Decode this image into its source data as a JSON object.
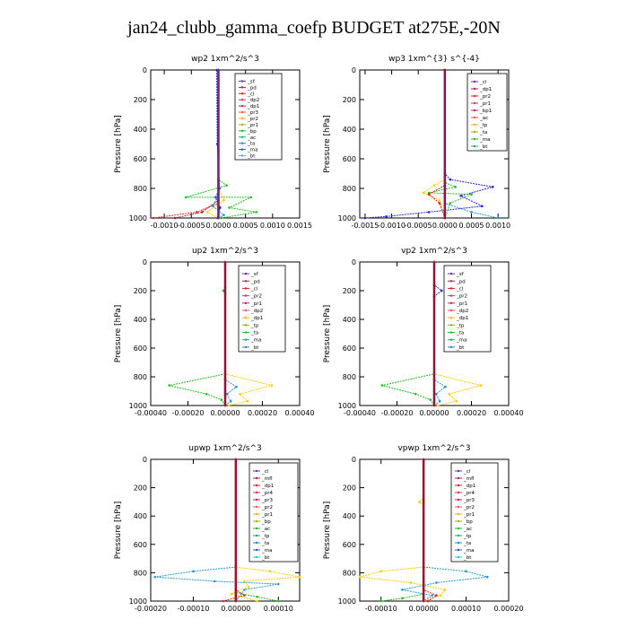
{
  "page_title": "jan24_clubb_gamma_coefp  BUDGET at275E,-20N",
  "chart_data": [
    {
      "type": "line",
      "title": "wp2   1xm^2/s^3",
      "ylabel": "Pressure [hPa]",
      "ylim": [
        1000,
        0
      ],
      "yticks": [
        0,
        200,
        400,
        600,
        800,
        1000
      ],
      "xlim": [
        -0.00125,
        0.0015
      ],
      "xticks": [
        -0.001,
        -0.0005,
        0.0,
        0.0005,
        0.001,
        0.0015
      ],
      "xtick_labels": [
        "-0.0010",
        "-0.0005",
        "0.0000",
        "0.0005",
        "0.0010",
        "0.0015"
      ],
      "legend": [
        "_sf",
        "_pd",
        "_cl",
        "_dp2",
        "_dp1",
        "_pr3",
        "_pr2",
        "_pr1",
        "_bp",
        "_ac",
        "_ta",
        "_ma",
        "_bt"
      ],
      "series": [
        {
          "color": "#2222cc",
          "points": [
            [
              -3e-05,
              0
            ],
            [
              -2e-05,
              500
            ],
            [
              2e-05,
              800
            ],
            [
              -5e-05,
              860
            ],
            [
              3e-05,
              930
            ],
            [
              -2e-05,
              1000
            ]
          ]
        },
        {
          "color": "#22bb22",
          "points": [
            [
              0,
              0
            ],
            [
              0,
              740
            ],
            [
              0.00015,
              780
            ],
            [
              -0.0006,
              860
            ],
            [
              0.0006,
              860
            ],
            [
              0.0002,
              930
            ],
            [
              0.0007,
              960
            ],
            [
              5e-05,
              1000
            ]
          ]
        },
        {
          "color": "#dd2222",
          "points": [
            [
              0,
              0
            ],
            [
              0,
              900
            ],
            [
              -0.0004,
              960
            ],
            [
              -0.0012,
              1000
            ]
          ]
        },
        {
          "color": "#882244",
          "points": [
            [
              0,
              0
            ],
            [
              0,
              880
            ],
            [
              -0.0003,
              960
            ],
            [
              -0.0008,
              1000
            ]
          ]
        },
        {
          "color": "#ffcc00",
          "points": [
            [
              0,
              0
            ],
            [
              0,
              800
            ],
            [
              0.0001,
              880
            ],
            [
              -0.0002,
              960
            ],
            [
              0,
              1000
            ]
          ]
        },
        {
          "color": "#2299cc",
          "points": [
            [
              0,
              0
            ],
            [
              0,
              840
            ],
            [
              -0.0001,
              920
            ],
            [
              0.0001,
              980
            ],
            [
              0,
              1000
            ]
          ]
        },
        {
          "color": "#6633aa",
          "points": [
            [
              0,
              0
            ],
            [
              0,
              1000
            ]
          ]
        }
      ]
    },
    {
      "type": "line",
      "title": "wp3   1xm^{3} s^{-4}",
      "ylabel": "Pressure [hPa]",
      "ylim": [
        1000,
        0
      ],
      "yticks": [
        0,
        200,
        400,
        600,
        800,
        1000
      ],
      "xlim": [
        -0.0016,
        0.0012
      ],
      "xticks": [
        -0.0015,
        -0.001,
        -0.0005,
        0.0,
        0.0005,
        0.001
      ],
      "xtick_labels": [
        "-0.0015",
        "-0.0010",
        "-0.0005",
        "0.0000",
        "0.0005",
        "0.0010"
      ],
      "legend": [
        "_cl",
        "_dp1",
        "_pr2",
        "_pr1",
        "_bp1",
        "_ac",
        "_tp",
        "_ta",
        "_ma",
        "_bt"
      ],
      "series": [
        {
          "color": "#2222cc",
          "points": [
            [
              0,
              0
            ],
            [
              0,
              700
            ],
            [
              0.0001,
              740
            ],
            [
              0.0009,
              790
            ],
            [
              0.0003,
              850
            ],
            [
              0.0007,
              920
            ],
            [
              -0.0003,
              960
            ],
            [
              -0.0011,
              990
            ],
            [
              -0.0015,
              1000
            ]
          ]
        },
        {
          "color": "#22bb22",
          "points": [
            [
              0,
              0
            ],
            [
              0,
              760
            ],
            [
              0.0002,
              790
            ],
            [
              -0.0003,
              830
            ],
            [
              0.0005,
              840
            ],
            [
              0.0001,
              900
            ],
            [
              0,
              1000
            ]
          ]
        },
        {
          "color": "#ffcc00",
          "points": [
            [
              0,
              0
            ],
            [
              0,
              740
            ],
            [
              -0.0002,
              780
            ],
            [
              -0.0004,
              830
            ],
            [
              -0.0001,
              880
            ],
            [
              0,
              1000
            ]
          ]
        },
        {
          "color": "#dd2222",
          "points": [
            [
              0,
              0
            ],
            [
              0,
              780
            ],
            [
              -0.0003,
              840
            ],
            [
              -0.0001,
              900
            ],
            [
              0,
              1000
            ]
          ]
        },
        {
          "color": "#2299cc",
          "points": [
            [
              0,
              0
            ],
            [
              0,
              900
            ],
            [
              0.0005,
              960
            ],
            [
              0.001,
              1000
            ]
          ]
        },
        {
          "color": "#aa0000",
          "points": [
            [
              0,
              0
            ],
            [
              0,
              1000
            ]
          ]
        }
      ]
    },
    {
      "type": "line",
      "title": "up2   1xm^2/s^3",
      "ylabel": "Pressure [hPa]",
      "ylim": [
        1000,
        0
      ],
      "yticks": [
        0,
        200,
        400,
        600,
        800,
        1000
      ],
      "xlim": [
        -0.0004,
        0.0004
      ],
      "xticks": [
        -0.0004,
        -0.0002,
        0.0,
        0.0002,
        0.0004
      ],
      "xtick_labels": [
        "-0.00040",
        "-0.00020",
        "0.00000",
        "0.00020",
        "0.00040"
      ],
      "legend": [
        "_sf",
        "_pd",
        "_cl",
        "_pr2",
        "_pr1",
        "_dp2",
        "_dp1",
        "_tp",
        "_ta",
        "_ma",
        "_bt"
      ],
      "series": [
        {
          "color": "#22bb22",
          "points": [
            [
              0,
              0
            ],
            [
              0,
              180
            ],
            [
              -1e-05,
              200
            ],
            [
              0,
              220
            ],
            [
              0,
              780
            ],
            [
              -0.0003,
              860
            ],
            [
              -0.0001,
              920
            ],
            [
              -2e-05,
              960
            ],
            [
              0,
              1000
            ]
          ]
        },
        {
          "color": "#ffcc00",
          "points": [
            [
              0,
              0
            ],
            [
              0,
              780
            ],
            [
              0.00025,
              860
            ],
            [
              8e-05,
              920
            ],
            [
              0.00012,
              970
            ],
            [
              2e-05,
              1000
            ]
          ]
        },
        {
          "color": "#2299cc",
          "points": [
            [
              0,
              0
            ],
            [
              0,
              820
            ],
            [
              6e-05,
              870
            ],
            [
              1e-05,
              920
            ],
            [
              3e-05,
              970
            ],
            [
              0,
              1000
            ]
          ]
        },
        {
          "color": "#cc2222",
          "points": [
            [
              0,
              0
            ],
            [
              0,
              1000
            ]
          ]
        }
      ]
    },
    {
      "type": "line",
      "title": "vp2   1xm^2/s^3",
      "ylabel": "Pressure [hPa]",
      "ylim": [
        1000,
        0
      ],
      "yticks": [
        0,
        200,
        400,
        600,
        800,
        1000
      ],
      "xlim": [
        -0.0004,
        0.0004
      ],
      "xticks": [
        -0.0004,
        -0.0002,
        0.0,
        0.0002,
        0.0004
      ],
      "xtick_labels": [
        "-0.00040",
        "-0.00020",
        "0.00000",
        "0.00020",
        "0.00040"
      ],
      "legend": [
        "_sf",
        "_pd",
        "_cl",
        "_pr2",
        "_pr1",
        "_dp2",
        "_dp1",
        "_tp",
        "_ta",
        "_ma",
        "_bt"
      ],
      "series": [
        {
          "color": "#2222cc",
          "points": [
            [
              0,
              0
            ],
            [
              0,
              160
            ],
            [
              4e-05,
              200
            ],
            [
              0,
              240
            ],
            [
              0,
              1000
            ]
          ]
        },
        {
          "color": "#22bb22",
          "points": [
            [
              0,
              0
            ],
            [
              0,
              780
            ],
            [
              -0.00028,
              860
            ],
            [
              -0.0001,
              920
            ],
            [
              -2e-05,
              960
            ],
            [
              0,
              1000
            ]
          ]
        },
        {
          "color": "#ffcc00",
          "points": [
            [
              0,
              0
            ],
            [
              0,
              780
            ],
            [
              0.00025,
              860
            ],
            [
              8e-05,
              920
            ],
            [
              0.00012,
              970
            ],
            [
              2e-05,
              1000
            ]
          ]
        },
        {
          "color": "#2299cc",
          "points": [
            [
              0,
              0
            ],
            [
              0,
              820
            ],
            [
              6e-05,
              870
            ],
            [
              1e-05,
              920
            ],
            [
              3e-05,
              970
            ],
            [
              0,
              1000
            ]
          ]
        },
        {
          "color": "#cc2222",
          "points": [
            [
              0,
              0
            ],
            [
              0,
              1000
            ]
          ]
        }
      ]
    },
    {
      "type": "line",
      "title": "upwp   1xm^2/s^3",
      "ylabel": "Pressure [hPa]",
      "ylim": [
        1000,
        0
      ],
      "yticks": [
        0,
        200,
        400,
        600,
        800,
        1000
      ],
      "xlim": [
        -0.0002,
        0.00015
      ],
      "xticks": [
        -0.0002,
        -0.0001,
        0.0,
        0.0001
      ],
      "xtick_labels": [
        "-0.00020",
        "-0.00010",
        "0.00000",
        "0.00010"
      ],
      "legend": [
        "_cl",
        "_mfl",
        "_dp1",
        "_pr4",
        "_pr3",
        "_pr2",
        "_pr1",
        "_bp",
        "_ac",
        "_tp",
        "_ta",
        "_ma",
        "_bt"
      ],
      "series": [
        {
          "color": "#2299cc",
          "points": [
            [
              0,
              0
            ],
            [
              0,
              760
            ],
            [
              -0.0001,
              790
            ],
            [
              -0.00019,
              830
            ],
            [
              -5e-05,
              860
            ],
            [
              0.0001,
              880
            ],
            [
              2e-05,
              920
            ],
            [
              0,
              1000
            ]
          ]
        },
        {
          "color": "#ffcc00",
          "points": [
            [
              0,
              0
            ],
            [
              0,
              760
            ],
            [
              8e-05,
              790
            ],
            [
              0.00015,
              830
            ],
            [
              2e-05,
              860
            ],
            [
              3e-05,
              900
            ],
            [
              -1e-05,
              950
            ],
            [
              5e-05,
              1000
            ]
          ]
        },
        {
          "color": "#22bb22",
          "points": [
            [
              0,
              0
            ],
            [
              0,
              940
            ],
            [
              5e-05,
              970
            ],
            [
              0.0001,
              1000
            ]
          ]
        },
        {
          "color": "#dd2222",
          "points": [
            [
              0,
              0
            ],
            [
              0,
              920
            ],
            [
              2e-05,
              960
            ],
            [
              -3e-05,
              1000
            ]
          ]
        },
        {
          "color": "#882288",
          "points": [
            [
              0,
              0
            ],
            [
              0,
              1000
            ]
          ]
        }
      ]
    },
    {
      "type": "line",
      "title": "vpwp   1xm^2/s^3",
      "ylabel": "Pressure [hPa]",
      "ylim": [
        1000,
        0
      ],
      "yticks": [
        0,
        200,
        400,
        600,
        800,
        1000
      ],
      "xlim": [
        -0.00015,
        0.0002
      ],
      "xticks": [
        -0.0001,
        0.0,
        0.0001,
        0.0002
      ],
      "xtick_labels": [
        "-0.00010",
        "0.00000",
        "0.00010",
        "0.00020"
      ],
      "legend": [
        "_cl",
        "_mfl",
        "_dp1",
        "_pr4",
        "_pr3",
        "_pr2",
        "_pr1",
        "_bp",
        "_ac",
        "_tp",
        "_ta",
        "_ma",
        "_bt"
      ],
      "series": [
        {
          "color": "#2299cc",
          "points": [
            [
              0,
              0
            ],
            [
              0,
              760
            ],
            [
              0.0001,
              790
            ],
            [
              0.00015,
              830
            ],
            [
              3e-05,
              870
            ],
            [
              -5e-05,
              920
            ],
            [
              2e-05,
              960
            ],
            [
              0,
              1000
            ]
          ]
        },
        {
          "color": "#ffcc00",
          "points": [
            [
              0,
              0
            ],
            [
              0,
              280
            ],
            [
              -1e-05,
              300
            ],
            [
              0,
              320
            ],
            [
              0,
              760
            ],
            [
              -0.0001,
              790
            ],
            [
              -0.00015,
              830
            ],
            [
              -3e-05,
              870
            ],
            [
              5e-05,
              920
            ],
            [
              4e-05,
              960
            ],
            [
              0,
              1000
            ]
          ]
        },
        {
          "color": "#22bb22",
          "points": [
            [
              0,
              0
            ],
            [
              0,
              950
            ],
            [
              -5e-05,
              980
            ],
            [
              -0.0001,
              1000
            ]
          ]
        },
        {
          "color": "#dd2222",
          "points": [
            [
              0,
              0
            ],
            [
              0,
              920
            ],
            [
              3e-05,
              960
            ],
            [
              1e-05,
              1000
            ]
          ]
        },
        {
          "color": "#882288",
          "points": [
            [
              0,
              0
            ],
            [
              0,
              1000
            ]
          ]
        }
      ]
    }
  ]
}
